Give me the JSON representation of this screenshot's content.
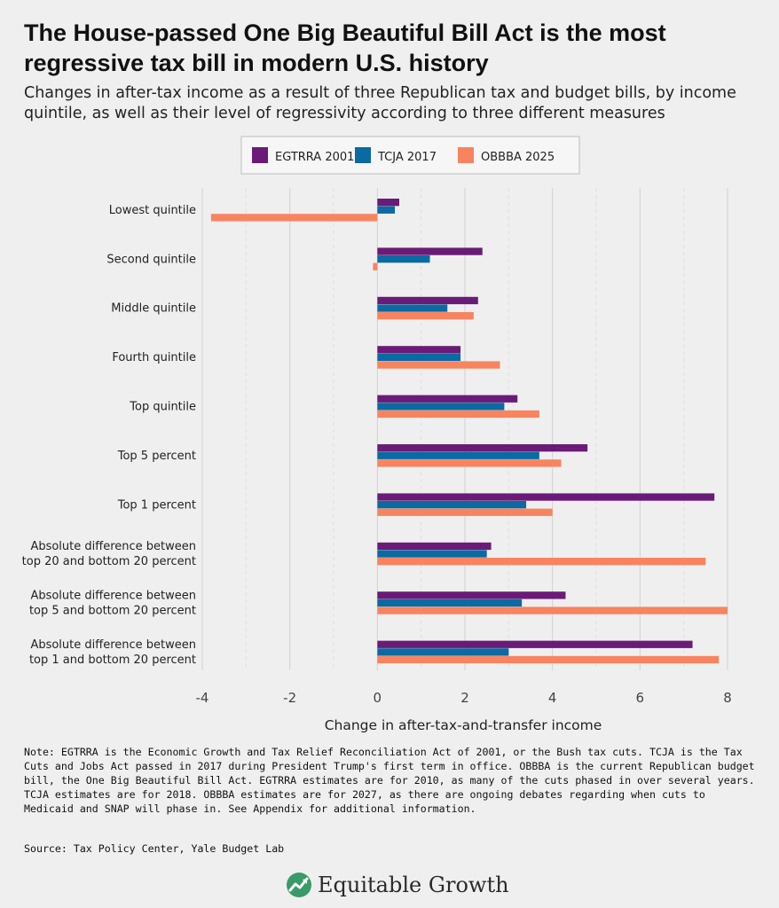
{
  "title": "The House-passed One Big Beautiful Bill Act is the most regressive tax bill in modern U.S. history",
  "subtitle": "Changes in after-tax income as a result of three Republican tax and budget bills, by income quintile, as well as their level of regressivity according to three different measures",
  "chart_data": {
    "type": "bar",
    "orientation": "horizontal",
    "categories": [
      "Lowest quintile",
      "Second quintile",
      "Middle quintile",
      "Fourth quintile",
      "Top quintile",
      "Top 5 percent",
      "Top 1 percent",
      "Absolute difference between\ntop 20 and bottom 20 percent",
      "Absolute difference between\ntop 5 and bottom 20 percent",
      "Absolute difference between\ntop 1 and bottom 20 percent"
    ],
    "series": [
      {
        "name": "EGTRRA 2001",
        "color": "#6a1b77",
        "values": [
          0.5,
          2.4,
          2.3,
          1.9,
          3.2,
          4.8,
          7.7,
          2.6,
          4.3,
          7.2
        ]
      },
      {
        "name": "TCJA 2017",
        "color": "#0b6aa2",
        "values": [
          0.4,
          1.2,
          1.6,
          1.9,
          2.9,
          3.7,
          3.4,
          2.5,
          3.3,
          3.0
        ]
      },
      {
        "name": "OBBBA 2025",
        "color": "#f8845f",
        "values": [
          -3.8,
          -0.1,
          2.2,
          2.8,
          3.7,
          4.2,
          4.0,
          7.5,
          8.0,
          7.8
        ]
      }
    ],
    "xlabel": "Change in after-tax-and-transfer income",
    "ylabel": "",
    "xlim": [
      -4,
      8
    ],
    "xticks": [
      -4,
      -2,
      0,
      2,
      4,
      6,
      8
    ],
    "grid": true,
    "legend_position": "top-center"
  },
  "note": "Note: EGTRRA is the Economic Growth and Tax Relief Reconciliation Act of 2001, or the Bush tax cuts. TCJA is the Tax Cuts and Jobs Act passed in 2017 during President Trump's first term in office. OBBBA is the current Republican budget bill, the One Big Beautiful Bill Act. EGTRRA estimates are for 2010, as many of the cuts phased in over several years. TCJA estimates are for 2018. OBBBA estimates are for 2027, as there are ongoing debates regarding when cuts to Medicaid and SNAP will phase in. See Appendix for additional information.",
  "source": "Source: Tax Policy Center, Yale Budget Lab",
  "brand": {
    "name": "Equitable Growth",
    "logo_icon": "equitable-growth-logo-icon",
    "logo_color": "#3a9a6a"
  }
}
